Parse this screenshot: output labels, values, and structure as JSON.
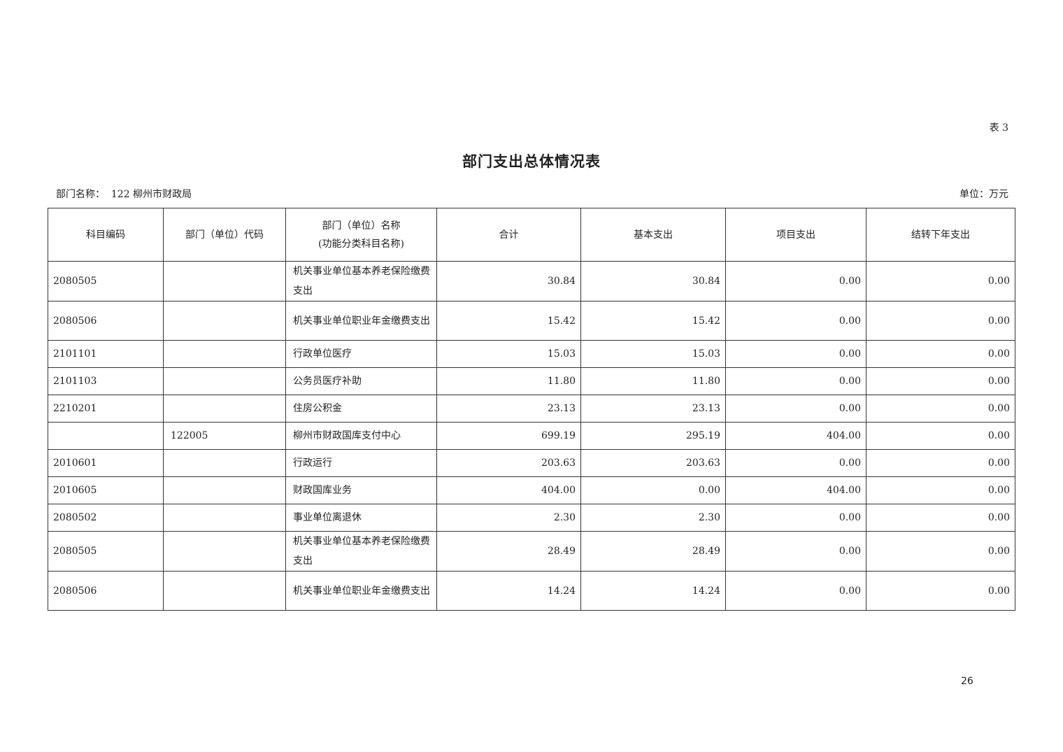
{
  "table_label": "表 3",
  "title": "部门支出总体情况表",
  "department": "部门名称：  122 柳州市财政局",
  "unit": "单位：万元",
  "headers": {
    "subject_code": "科目编码",
    "dept_code": "部门（单位）代码",
    "dept_name_line1": "部门（单位）名称",
    "dept_name_line2": "(功能分类科目名称)",
    "total": "合计",
    "basic": "基本支出",
    "project": "项目支出",
    "carryover": "结转下年支出"
  },
  "rows": [
    {
      "code": "2080505",
      "dept_code": "",
      "name": "机关事业单位基本养老保险缴费支出",
      "total": "30.84",
      "basic": "30.84",
      "project": "0.00",
      "carryover": "0.00"
    },
    {
      "code": "2080506",
      "dept_code": "",
      "name": "机关事业单位职业年金缴费支出",
      "total": "15.42",
      "basic": "15.42",
      "project": "0.00",
      "carryover": "0.00"
    },
    {
      "code": "2101101",
      "dept_code": "",
      "name": "行政单位医疗",
      "total": "15.03",
      "basic": "15.03",
      "project": "0.00",
      "carryover": "0.00"
    },
    {
      "code": "2101103",
      "dept_code": "",
      "name": "公务员医疗补助",
      "total": "11.80",
      "basic": "11.80",
      "project": "0.00",
      "carryover": "0.00"
    },
    {
      "code": "2210201",
      "dept_code": "",
      "name": "住房公积金",
      "total": "23.13",
      "basic": "23.13",
      "project": "0.00",
      "carryover": "0.00"
    },
    {
      "code": "",
      "dept_code": "122005",
      "name": "柳州市财政国库支付中心",
      "total": "699.19",
      "basic": "295.19",
      "project": "404.00",
      "carryover": "0.00"
    },
    {
      "code": "2010601",
      "dept_code": "",
      "name": "行政运行",
      "total": "203.63",
      "basic": "203.63",
      "project": "0.00",
      "carryover": "0.00"
    },
    {
      "code": "2010605",
      "dept_code": "",
      "name": "财政国库业务",
      "total": "404.00",
      "basic": "0.00",
      "project": "404.00",
      "carryover": "0.00"
    },
    {
      "code": "2080502",
      "dept_code": "",
      "name": "事业单位离退休",
      "total": "2.30",
      "basic": "2.30",
      "project": "0.00",
      "carryover": "0.00"
    },
    {
      "code": "2080505",
      "dept_code": "",
      "name": "机关事业单位基本养老保险缴费支出",
      "total": "28.49",
      "basic": "28.49",
      "project": "0.00",
      "carryover": "0.00"
    },
    {
      "code": "2080506",
      "dept_code": "",
      "name": "机关事业单位职业年金缴费支出",
      "total": "14.24",
      "basic": "14.24",
      "project": "0.00",
      "carryover": "0.00"
    }
  ],
  "page_number": "26"
}
